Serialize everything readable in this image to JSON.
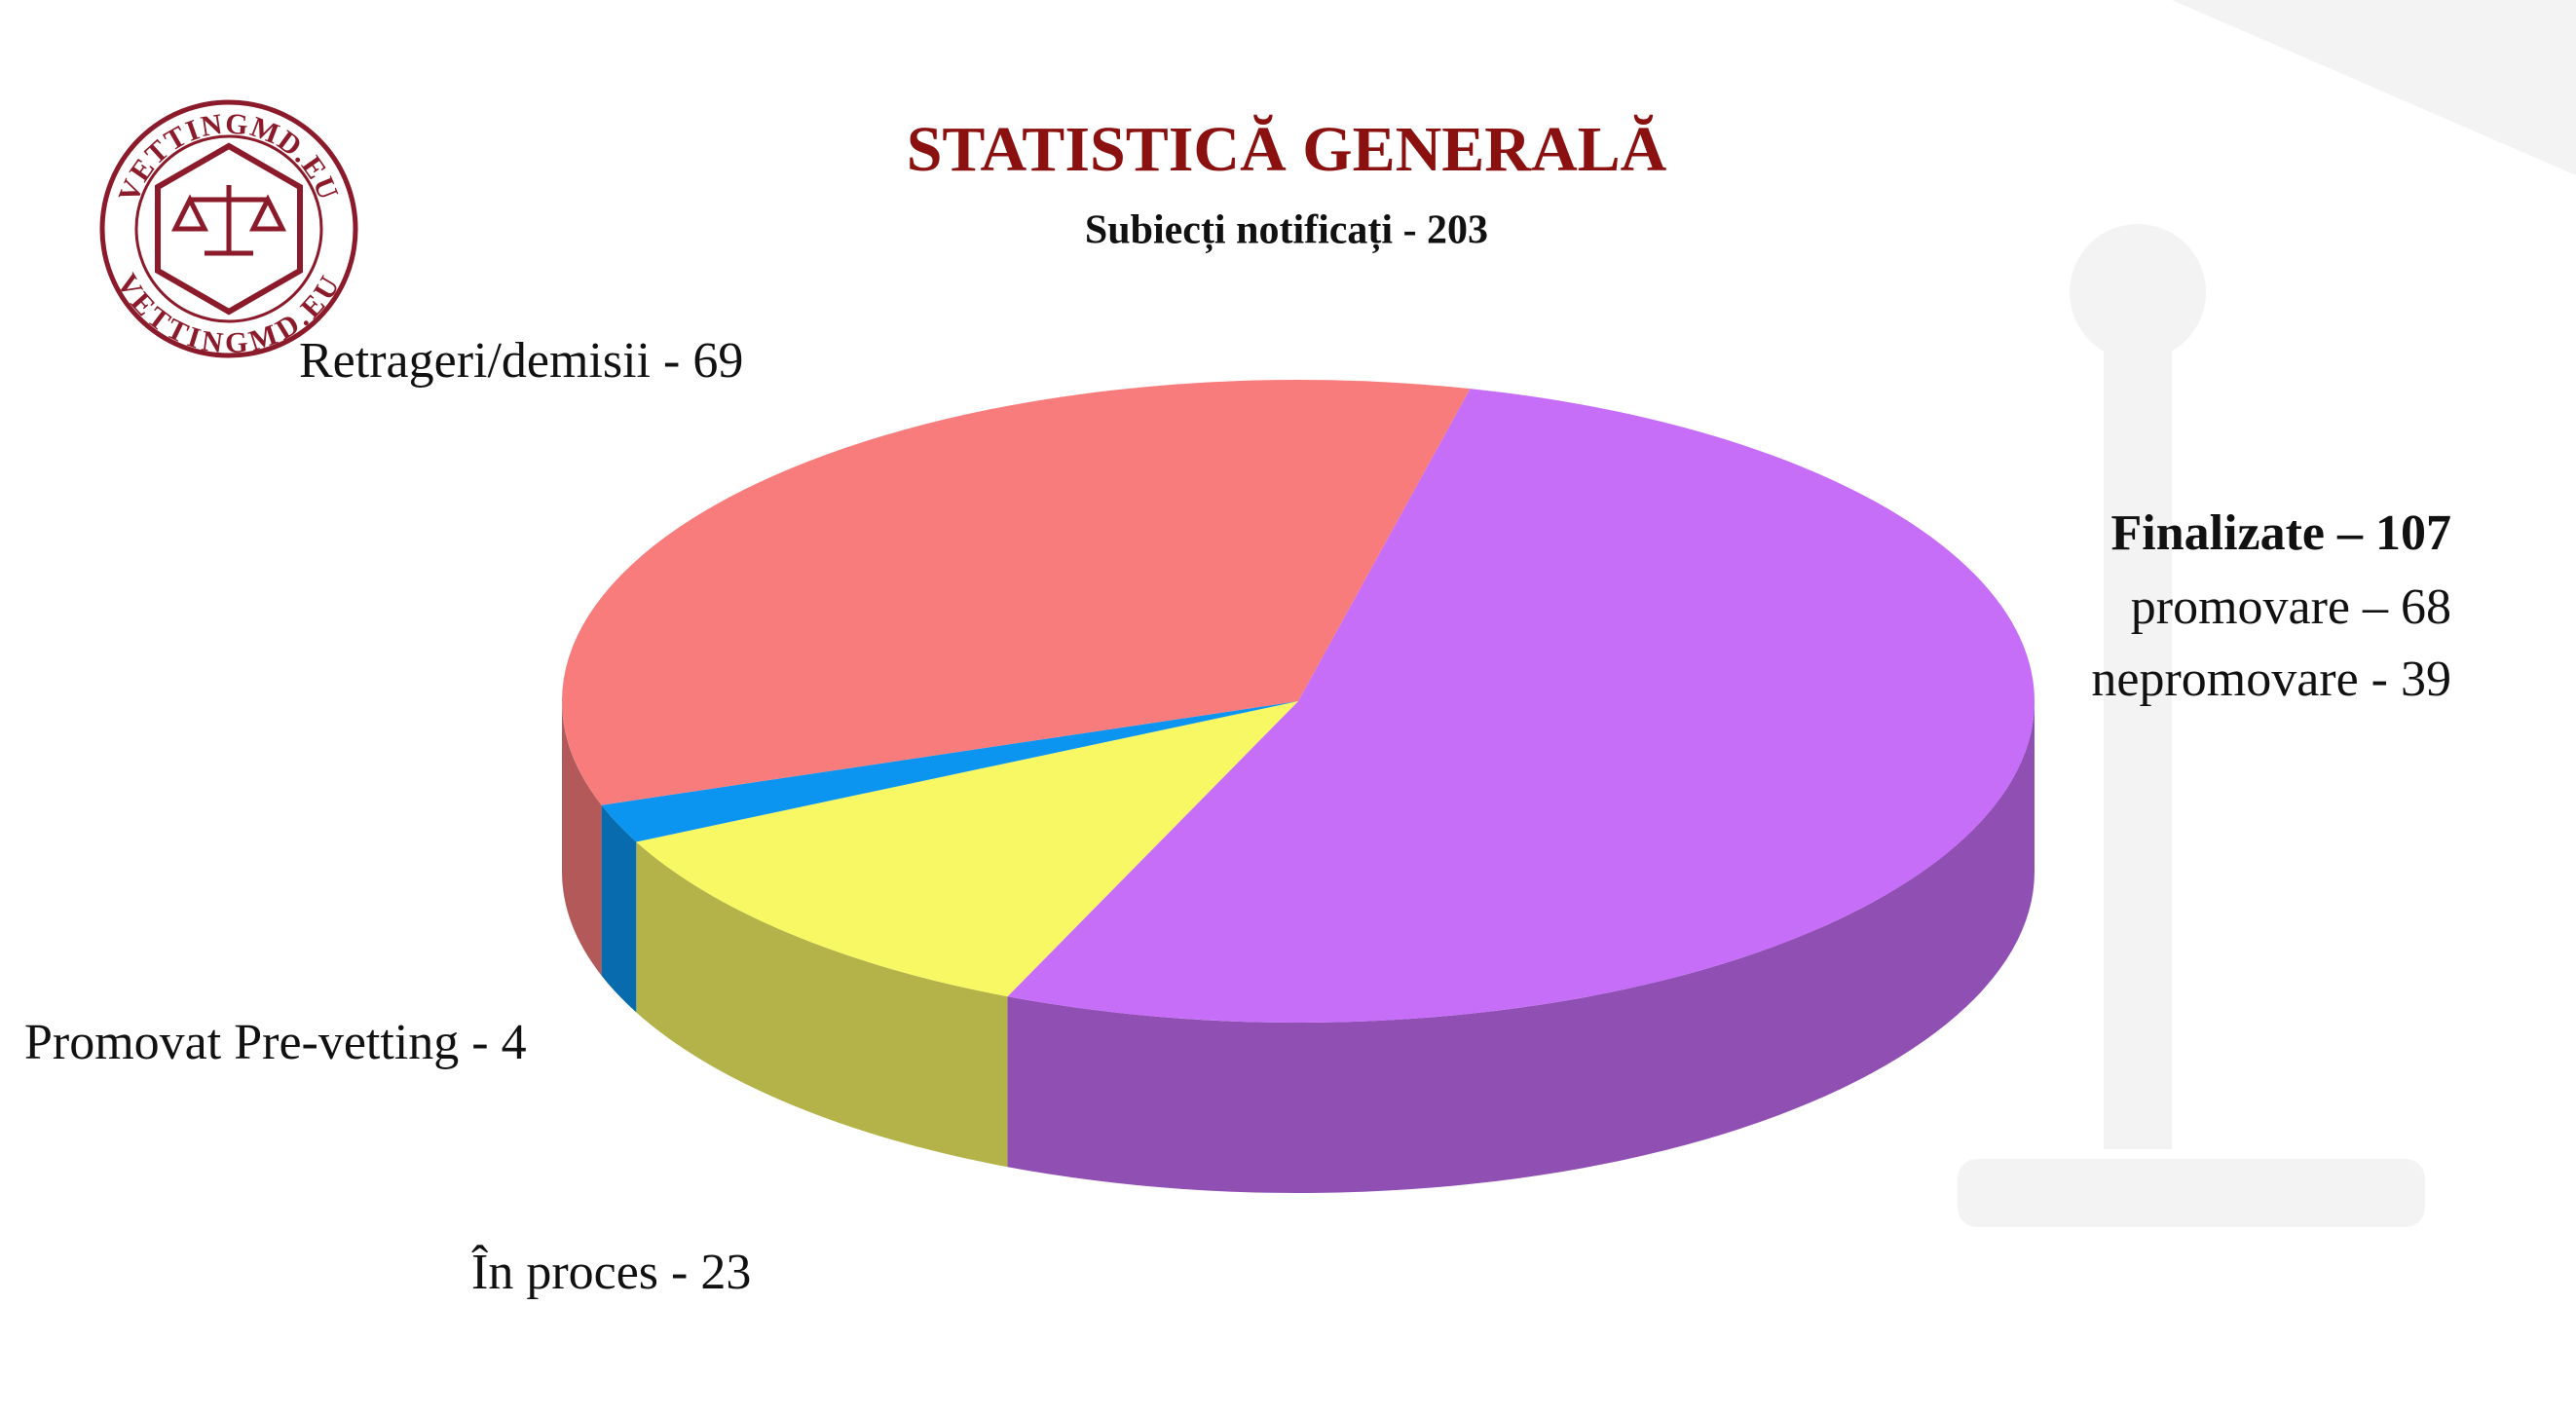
{
  "logo": {
    "text_top": "VETTINGMD.EU",
    "text_bottom": "VETTINGMD.EU"
  },
  "chart_data": {
    "type": "pie3d",
    "title": "STATISTICĂ GENERALĂ",
    "subtitle": "Subiecți notificați - 203",
    "categories": [
      "Finalizate – 107",
      "În proces - 23",
      "Promovat Pre-vetting - 4",
      "Retrageri/demisii - 69"
    ],
    "values": [
      107,
      23,
      4,
      69
    ],
    "colors": [
      "#c76ef8",
      "#f8f865",
      "#0b94f0",
      "#f87c7c"
    ],
    "details": [
      "promovare – 68",
      "nepromovare - 39"
    ]
  }
}
